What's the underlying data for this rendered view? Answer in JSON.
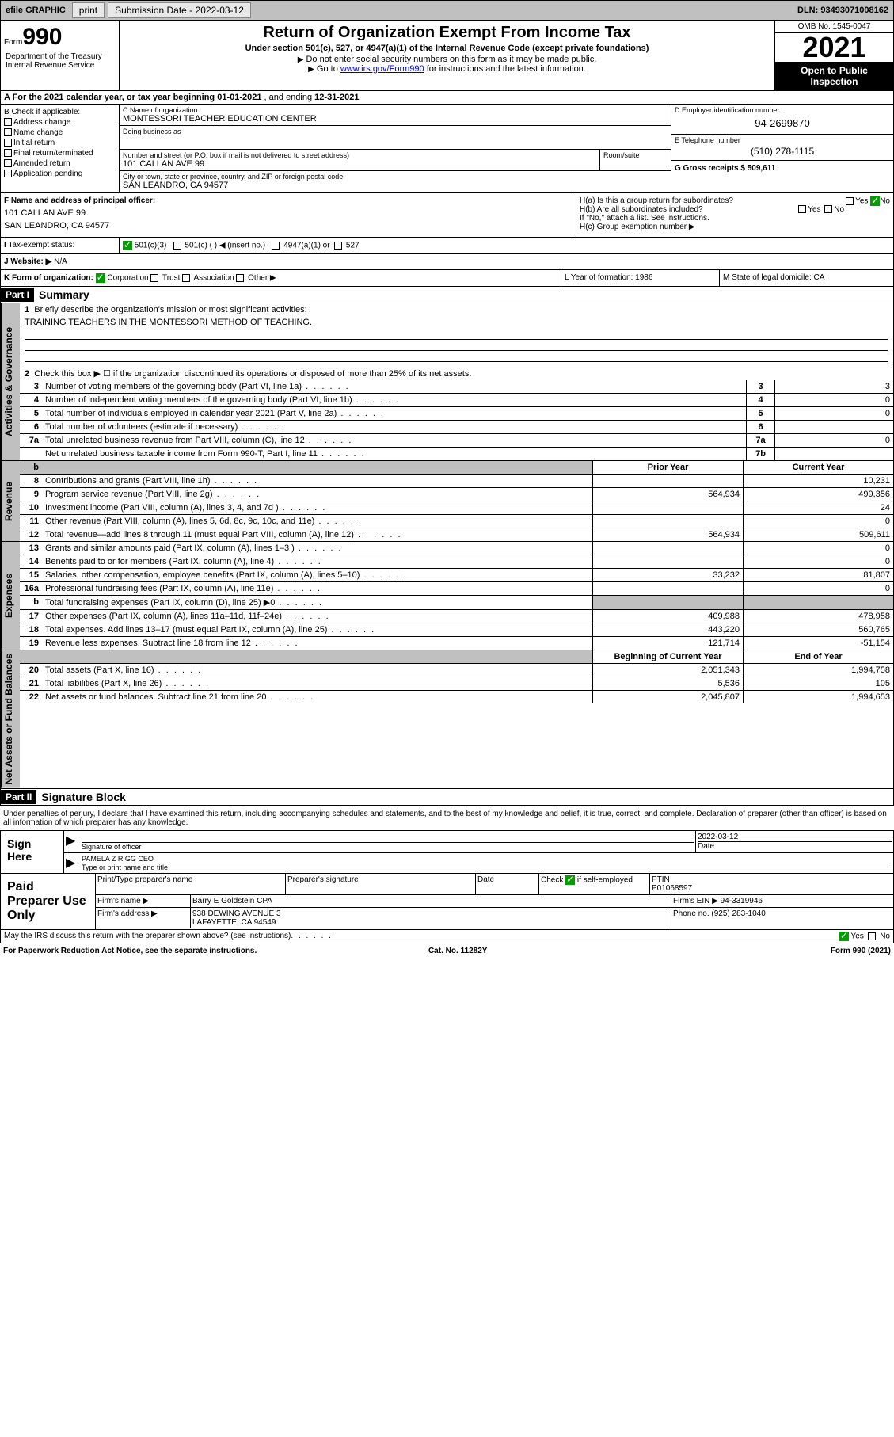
{
  "topbar": {
    "efile": "efile GRAPHIC",
    "print": "print",
    "sub_label": "Submission Date - 2022-03-12",
    "dln": "DLN: 93493071008162"
  },
  "header": {
    "form_word": "Form",
    "form_num": "990",
    "title": "Return of Organization Exempt From Income Tax",
    "sub": "Under section 501(c), 527, or 4947(a)(1) of the Internal Revenue Code (except private foundations)",
    "note1": "Do not enter social security numbers on this form as it may be made public.",
    "note2_pre": "Go to ",
    "note2_link": "www.irs.gov/Form990",
    "note2_post": " for instructions and the latest information.",
    "omb": "OMB No. 1545-0047",
    "year": "2021",
    "open": "Open to Public Inspection",
    "dept": "Department of the Treasury Internal Revenue Service"
  },
  "rowA": {
    "label": "A For the 2021 calendar year, or tax year beginning ",
    "begin": "01-01-2021",
    "mid": " , and ending ",
    "end": "12-31-2021"
  },
  "colB": {
    "label": "B Check if applicable:",
    "items": [
      "Address change",
      "Name change",
      "Initial return",
      "Final return/terminated",
      "Amended return",
      "Application pending"
    ]
  },
  "boxC": {
    "name_label": "C Name of organization",
    "name": "MONTESSORI TEACHER EDUCATION CENTER",
    "dba_label": "Doing business as",
    "addr_label": "Number and street (or P.O. box if mail is not delivered to street address)",
    "addr": "101 CALLAN AVE 99",
    "room_label": "Room/suite",
    "city_label": "City or town, state or province, country, and ZIP or foreign postal code",
    "city": "SAN LEANDRO, CA  94577"
  },
  "boxD": {
    "label": "D Employer identification number",
    "val": "94-2699870"
  },
  "boxE": {
    "label": "E Telephone number",
    "val": "(510) 278-1115"
  },
  "boxG": {
    "label": "G Gross receipts $",
    "val": "509,611"
  },
  "boxF": {
    "label": "F Name and address of principal officer:",
    "line1": "101 CALLAN AVE 99",
    "line2": "SAN LEANDRO, CA  94577"
  },
  "boxH": {
    "a": "H(a)  Is this a group return for subordinates?",
    "a_yes": "Yes",
    "a_no": "No",
    "b": "H(b)  Are all subordinates included?",
    "b_yes": "Yes",
    "b_no": "No",
    "b_note": "If \"No,\" attach a list. See instructions.",
    "c": "H(c)  Group exemption number ▶"
  },
  "rowI": {
    "label": "Tax-exempt status:",
    "opts": [
      "501(c)(3)",
      "501(c) (  ) ◀ (insert no.)",
      "4947(a)(1) or",
      "527"
    ]
  },
  "rowJ": {
    "label": "J  Website: ▶",
    "val": "N/A"
  },
  "rowK": {
    "label": "K Form of organization:",
    "opts": [
      "Corporation",
      "Trust",
      "Association",
      "Other ▶"
    ],
    "year_label": "L Year of formation:",
    "year": "1986",
    "state_label": "M State of legal domicile:",
    "state": "CA"
  },
  "part1": {
    "header": "Part I",
    "title": "Summary",
    "tabs": {
      "gov": "Activities & Governance",
      "rev": "Revenue",
      "exp": "Expenses",
      "net": "Net Assets or Fund Balances"
    },
    "line1": "Briefly describe the organization's mission or most significant activities:",
    "mission": "TRAINING TEACHERS IN THE MONTESSORI METHOD OF TEACHING.",
    "line2": "Check this box ▶ ☐  if the organization discontinued its operations or disposed of more than 25% of its net assets.",
    "gov_lines": [
      {
        "n": "3",
        "d": "Number of voting members of the governing body (Part VI, line 1a)",
        "r": "3",
        "v": "3"
      },
      {
        "n": "4",
        "d": "Number of independent voting members of the governing body (Part VI, line 1b)",
        "r": "4",
        "v": "0"
      },
      {
        "n": "5",
        "d": "Total number of individuals employed in calendar year 2021 (Part V, line 2a)",
        "r": "5",
        "v": "0"
      },
      {
        "n": "6",
        "d": "Total number of volunteers (estimate if necessary)",
        "r": "6",
        "v": ""
      },
      {
        "n": "7a",
        "d": "Total unrelated business revenue from Part VIII, column (C), line 12",
        "r": "7a",
        "v": "0"
      },
      {
        "n": "",
        "d": "Net unrelated business taxable income from Form 990-T, Part I, line 11",
        "r": "7b",
        "v": ""
      }
    ],
    "col_prior": "Prior Year",
    "col_curr": "Current Year",
    "rev_lines": [
      {
        "n": "8",
        "d": "Contributions and grants (Part VIII, line 1h)",
        "p": "",
        "c": "10,231"
      },
      {
        "n": "9",
        "d": "Program service revenue (Part VIII, line 2g)",
        "p": "564,934",
        "c": "499,356"
      },
      {
        "n": "10",
        "d": "Investment income (Part VIII, column (A), lines 3, 4, and 7d )",
        "p": "",
        "c": "24"
      },
      {
        "n": "11",
        "d": "Other revenue (Part VIII, column (A), lines 5, 6d, 8c, 9c, 10c, and 11e)",
        "p": "",
        "c": "0"
      },
      {
        "n": "12",
        "d": "Total revenue—add lines 8 through 11 (must equal Part VIII, column (A), line 12)",
        "p": "564,934",
        "c": "509,611"
      }
    ],
    "exp_lines": [
      {
        "n": "13",
        "d": "Grants and similar amounts paid (Part IX, column (A), lines 1–3 )",
        "p": "",
        "c": "0"
      },
      {
        "n": "14",
        "d": "Benefits paid to or for members (Part IX, column (A), line 4)",
        "p": "",
        "c": "0"
      },
      {
        "n": "15",
        "d": "Salaries, other compensation, employee benefits (Part IX, column (A), lines 5–10)",
        "p": "33,232",
        "c": "81,807"
      },
      {
        "n": "16a",
        "d": "Professional fundraising fees (Part IX, column (A), line 11e)",
        "p": "",
        "c": "0"
      },
      {
        "n": "b",
        "d": "Total fundraising expenses (Part IX, column (D), line 25) ▶0",
        "p": "GREY",
        "c": "GREY"
      },
      {
        "n": "17",
        "d": "Other expenses (Part IX, column (A), lines 11a–11d, 11f–24e)",
        "p": "409,988",
        "c": "478,958"
      },
      {
        "n": "18",
        "d": "Total expenses. Add lines 13–17 (must equal Part IX, column (A), line 25)",
        "p": "443,220",
        "c": "560,765"
      },
      {
        "n": "19",
        "d": "Revenue less expenses. Subtract line 18 from line 12",
        "p": "121,714",
        "c": "-51,154"
      }
    ],
    "net_header_l": "Beginning of Current Year",
    "net_header_r": "End of Year",
    "net_lines": [
      {
        "n": "20",
        "d": "Total assets (Part X, line 16)",
        "p": "2,051,343",
        "c": "1,994,758"
      },
      {
        "n": "21",
        "d": "Total liabilities (Part X, line 26)",
        "p": "5,536",
        "c": "105"
      },
      {
        "n": "22",
        "d": "Net assets or fund balances. Subtract line 21 from line 20",
        "p": "2,045,807",
        "c": "1,994,653"
      }
    ]
  },
  "part2": {
    "header": "Part II",
    "title": "Signature Block",
    "decl": "Under penalties of perjury, I declare that I have examined this return, including accompanying schedules and statements, and to the best of my knowledge and belief, it is true, correct, and complete. Declaration of preparer (other than officer) is based on all information of which preparer has any knowledge.",
    "sign_here": "Sign Here",
    "sig_label": "Signature of officer",
    "date_label": "Date",
    "date_val": "2022-03-12",
    "name": "PAMELA Z RIGG  CEO",
    "name_label": "Type or print name and title"
  },
  "prep": {
    "title": "Paid Preparer Use Only",
    "h1": "Print/Type preparer's name",
    "h2": "Preparer's signature",
    "h3": "Date",
    "h4_l": "Check",
    "h4_r": "if self-employed",
    "h5": "PTIN",
    "ptin": "P01068597",
    "firm_name_l": "Firm's name    ▶",
    "firm_name": "Barry E Goldstein CPA",
    "firm_ein_l": "Firm's EIN ▶",
    "firm_ein": "94-3319946",
    "firm_addr_l": "Firm's address ▶",
    "firm_addr1": "938 DEWING AVENUE 3",
    "firm_addr2": "LAFAYETTE, CA  94549",
    "phone_l": "Phone no.",
    "phone": "(925) 283-1040"
  },
  "footer": {
    "discuss": "May the IRS discuss this return with the preparer shown above? (see instructions)",
    "yes": "Yes",
    "no": "No",
    "pra": "For Paperwork Reduction Act Notice, see the separate instructions.",
    "cat": "Cat. No. 11282Y",
    "form": "Form 990 (2021)"
  }
}
